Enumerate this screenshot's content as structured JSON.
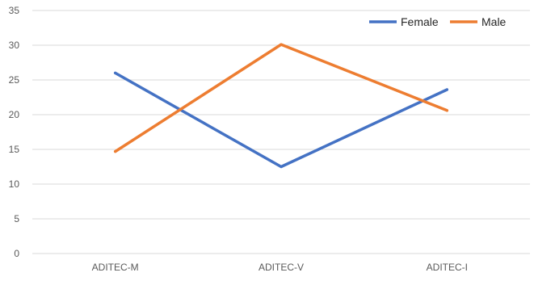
{
  "chart_data": {
    "type": "line",
    "categories": [
      "ADITEC-M",
      "ADITEC-V",
      "ADITEC-I"
    ],
    "series": [
      {
        "name": "Female",
        "color": "#4472C4",
        "values": [
          26,
          12.5,
          23.6
        ]
      },
      {
        "name": "Male",
        "color": "#ED7D31",
        "values": [
          14.7,
          30.1,
          20.6
        ]
      }
    ],
    "ylim": [
      0,
      35
    ],
    "yticks": [
      0,
      5,
      10,
      15,
      20,
      25,
      30,
      35
    ],
    "ytick_labels": [
      "0",
      "5",
      "10",
      "15",
      "20",
      "25",
      "30",
      "35"
    ],
    "grid": true,
    "legend_position": "top-right",
    "title": "",
    "xlabel": "",
    "ylabel": ""
  }
}
